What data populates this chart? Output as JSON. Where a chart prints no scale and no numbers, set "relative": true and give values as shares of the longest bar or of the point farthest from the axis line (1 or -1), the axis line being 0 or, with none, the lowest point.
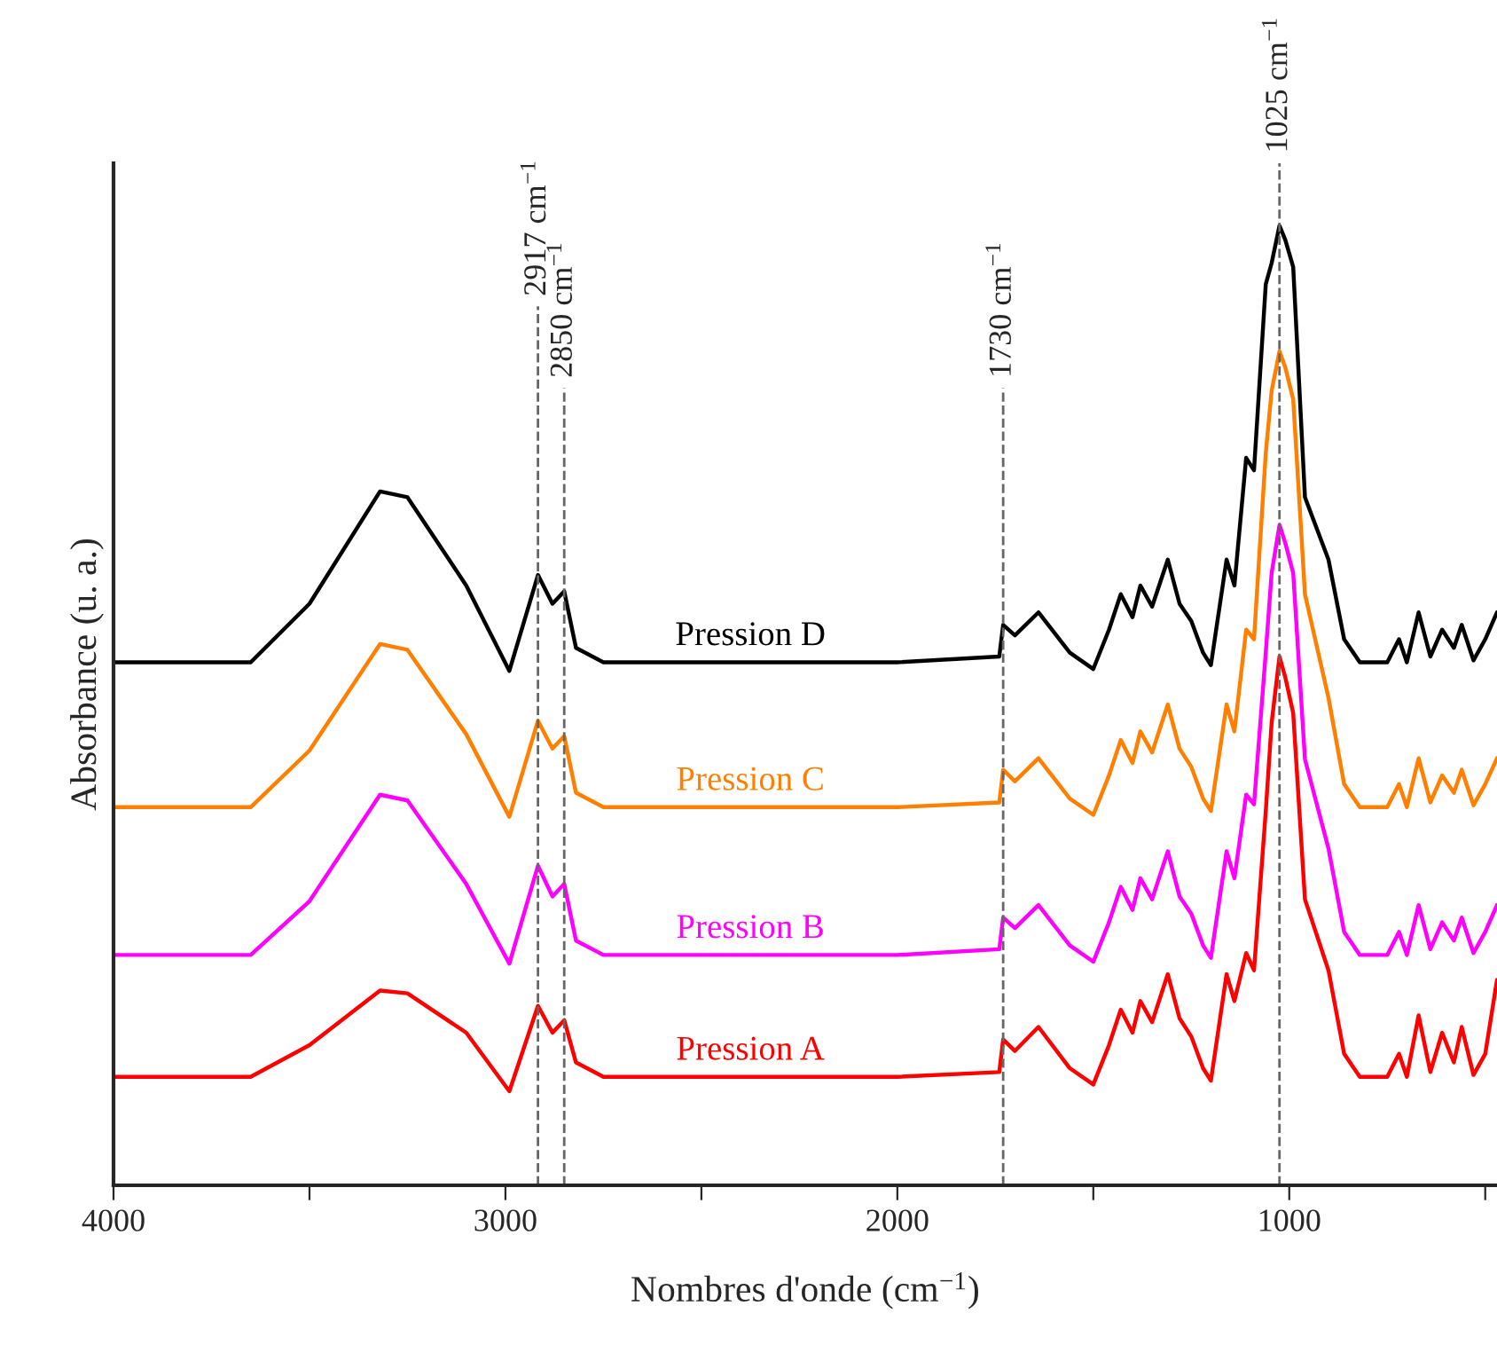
{
  "chart_data": {
    "type": "line",
    "relative": true,
    "xlabel": "Nombres d'onde (cm$^{−1}$)",
    "ylabel": "Absorbance (u. a.)",
    "xlim": [
      4000,
      470
    ],
    "xticks": [
      4000,
      {
        "value": 3500,
        "label": null
      },
      3000,
      {
        "value": 2500,
        "label": null
      },
      2000,
      {
        "value": 1500,
        "label": null
      },
      1000,
      {
        "value": 500,
        "label": null
      }
    ],
    "tick_labels": "x",
    "grid": false,
    "legend": false,
    "marker": "none",
    "line_style": "solid",
    "x": [
      4000,
      3650,
      3500,
      3320,
      3250,
      3100,
      2990,
      2917,
      2880,
      2850,
      2820,
      2750,
      2000,
      1740,
      1730,
      1700,
      1640,
      1560,
      1500,
      1460,
      1430,
      1400,
      1380,
      1350,
      1310,
      1280,
      1250,
      1220,
      1200,
      1160,
      1140,
      1110,
      1090,
      1060,
      1045,
      1025,
      1010,
      990,
      960,
      900,
      860,
      820,
      750,
      720,
      700,
      670,
      640,
      610,
      580,
      560,
      530,
      500,
      470
    ],
    "series": [
      {
        "name": "Pression A",
        "color": "#ff0000",
        "values": [
          0.113,
          0.113,
          0.146,
          0.203,
          0.2,
          0.159,
          0.098,
          0.187,
          0.159,
          0.172,
          0.128,
          0.113,
          0.113,
          0.118,
          0.152,
          0.14,
          0.165,
          0.122,
          0.105,
          0.146,
          0.183,
          0.159,
          0.192,
          0.17,
          0.22,
          0.174,
          0.155,
          0.122,
          0.109,
          0.22,
          0.192,
          0.242,
          0.224,
          0.39,
          0.482,
          0.551,
          0.529,
          0.492,
          0.298,
          0.224,
          0.137,
          0.113,
          0.113,
          0.137,
          0.113,
          0.177,
          0.118,
          0.159,
          0.128,
          0.165,
          0.115,
          0.137,
          0.214
        ]
      },
      {
        "name": "Pression B",
        "color": "#ff00ff",
        "values": [
          0.24,
          0.24,
          0.296,
          0.407,
          0.401,
          0.314,
          0.231,
          0.333,
          0.301,
          0.314,
          0.255,
          0.24,
          0.24,
          0.246,
          0.279,
          0.268,
          0.292,
          0.25,
          0.233,
          0.274,
          0.311,
          0.287,
          0.32,
          0.298,
          0.348,
          0.301,
          0.283,
          0.25,
          0.237,
          0.348,
          0.32,
          0.407,
          0.397,
          0.555,
          0.638,
          0.688,
          0.669,
          0.638,
          0.444,
          0.351,
          0.264,
          0.24,
          0.24,
          0.264,
          0.24,
          0.292,
          0.246,
          0.274,
          0.255,
          0.279,
          0.242,
          0.264,
          0.292
        ]
      },
      {
        "name": "Pression C",
        "color": "#ff8000",
        "values": [
          0.394,
          0.394,
          0.453,
          0.564,
          0.558,
          0.47,
          0.384,
          0.484,
          0.455,
          0.468,
          0.409,
          0.394,
          0.394,
          0.399,
          0.433,
          0.421,
          0.445,
          0.403,
          0.386,
          0.427,
          0.464,
          0.44,
          0.473,
          0.451,
          0.501,
          0.455,
          0.436,
          0.403,
          0.39,
          0.501,
          0.473,
          0.579,
          0.569,
          0.763,
          0.828,
          0.869,
          0.852,
          0.819,
          0.616,
          0.508,
          0.418,
          0.394,
          0.394,
          0.418,
          0.394,
          0.445,
          0.399,
          0.427,
          0.409,
          0.433,
          0.396,
          0.418,
          0.445
        ]
      },
      {
        "name": "Pression D",
        "color": "#000000",
        "values": [
          0.545,
          0.545,
          0.606,
          0.723,
          0.717,
          0.625,
          0.536,
          0.636,
          0.606,
          0.619,
          0.56,
          0.545,
          0.545,
          0.551,
          0.584,
          0.573,
          0.597,
          0.555,
          0.538,
          0.579,
          0.616,
          0.592,
          0.625,
          0.603,
          0.652,
          0.606,
          0.588,
          0.555,
          0.542,
          0.652,
          0.625,
          0.758,
          0.745,
          0.939,
          0.961,
          1,
          0.985,
          0.957,
          0.717,
          0.652,
          0.569,
          0.545,
          0.545,
          0.569,
          0.545,
          0.597,
          0.551,
          0.579,
          0.56,
          0.584,
          0.547,
          0.569,
          0.597
        ]
      }
    ],
    "ref_lines": [
      {
        "axis": "x",
        "value": 2917,
        "label": "2917 cm$^{−1}$",
        "color": "#666666",
        "line_style": "dashed"
      },
      {
        "axis": "x",
        "value": 2850,
        "label": "2850 cm$^{−1}$",
        "color": "#666666",
        "line_style": "dashed"
      },
      {
        "axis": "x",
        "value": 1730,
        "label": "1730 cm$^{−1}$",
        "color": "#666666",
        "line_style": "dashed"
      },
      {
        "axis": "x",
        "value": 1025,
        "label": "1025 cm$^{−1}$",
        "color": "#666666",
        "line_style": "dashed"
      }
    ]
  }
}
